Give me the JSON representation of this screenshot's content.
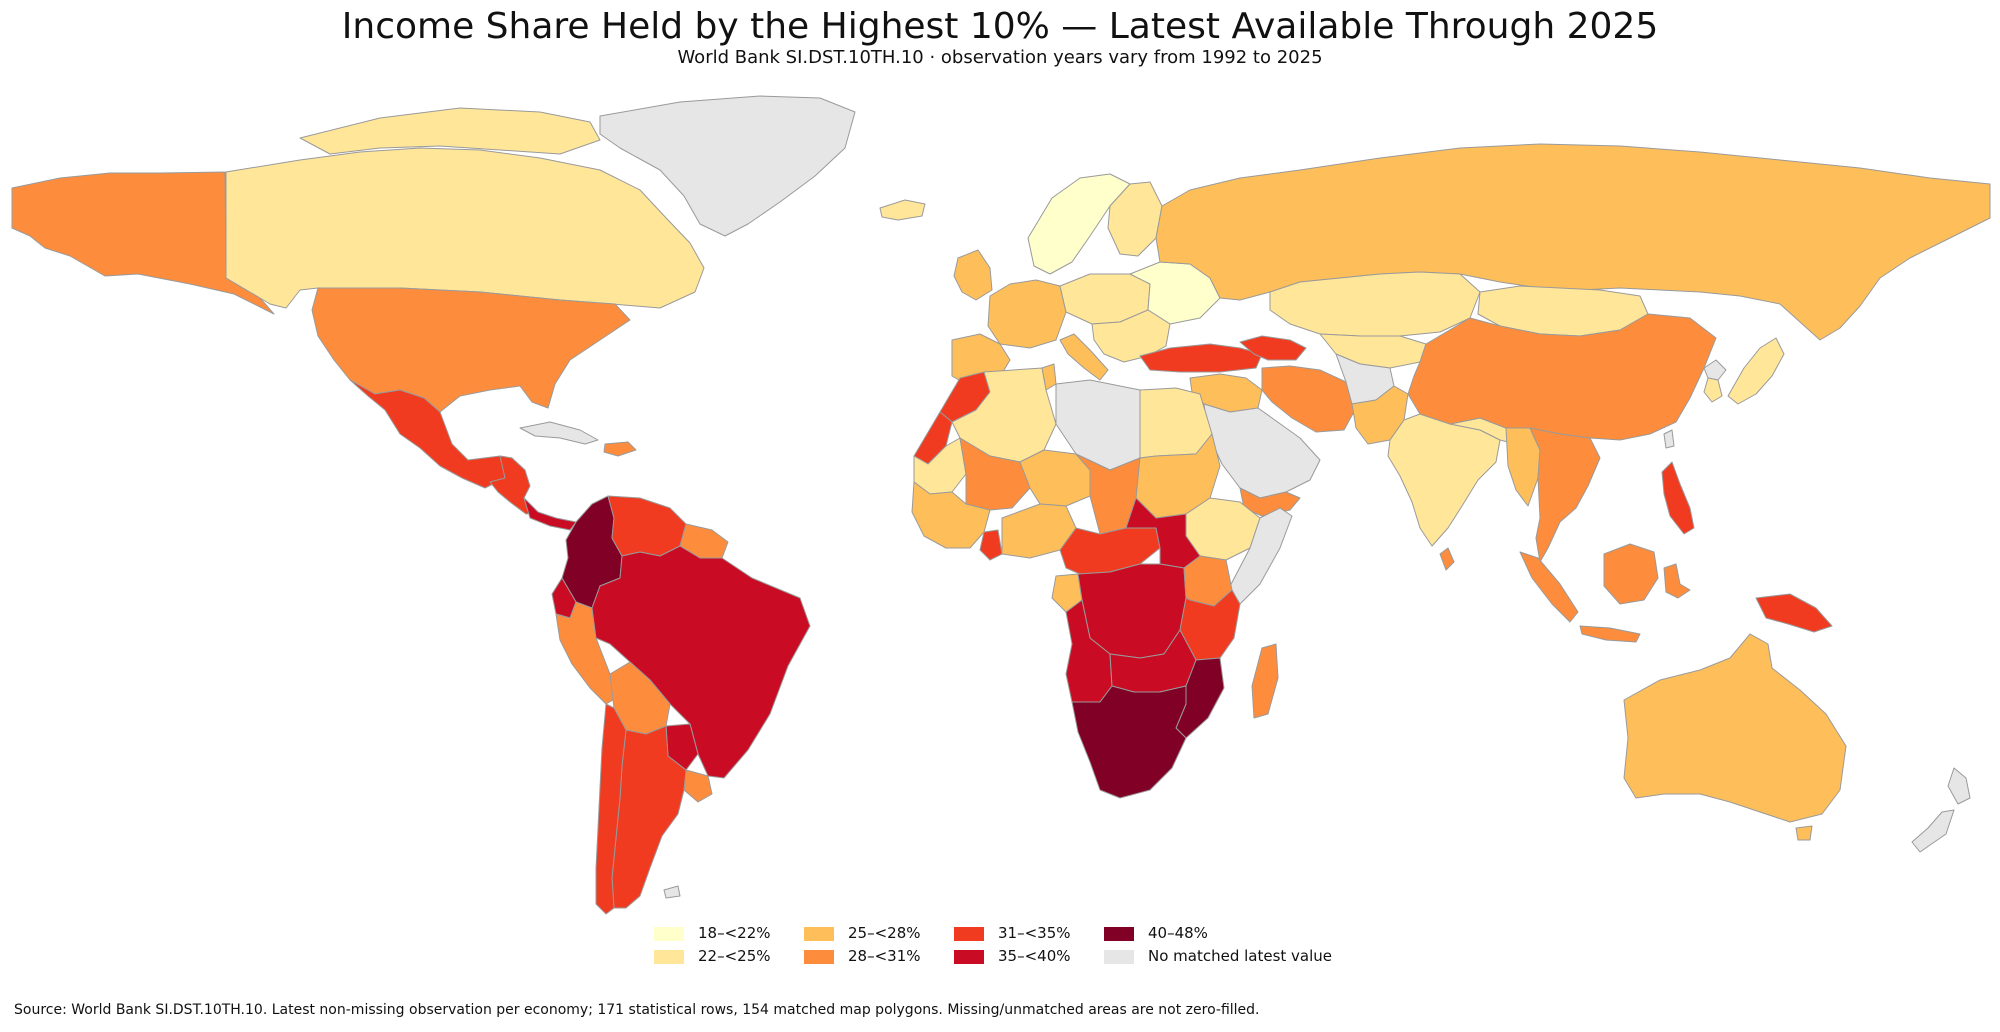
{
  "title": "Income Share Held by the Highest 10% — Latest Available Through 2025",
  "subtitle": "World Bank SI.DST.10TH.10 · observation years vary from 1992 to 2025",
  "legend": [
    {
      "label": "18–<22%",
      "color": "#ffffcc"
    },
    {
      "label": "22–<25%",
      "color": "#ffe699"
    },
    {
      "label": "25–<28%",
      "color": "#febf5a"
    },
    {
      "label": "28–<31%",
      "color": "#fd8d3c"
    },
    {
      "label": "31–<35%",
      "color": "#f03b20"
    },
    {
      "label": "35–<40%",
      "color": "#c90c24"
    },
    {
      "label": "40–48%",
      "color": "#800026"
    },
    {
      "label": "No matched latest value",
      "color": "#e6e6e6"
    }
  ],
  "source": "Source: World Bank SI.DST.10TH.10. Latest non-missing observation per economy; 171 statistical rows, 154 matched map polygons. Missing/unmatched areas are not zero-filled.",
  "map_regions": [
    {
      "name": "alaska",
      "bin": "28–<31%"
    },
    {
      "name": "canada",
      "bin": "22–<25%"
    },
    {
      "name": "greenland",
      "bin": "No matched latest value"
    },
    {
      "name": "iceland",
      "bin": "22–<25%"
    },
    {
      "name": "united-states",
      "bin": "28–<31%"
    },
    {
      "name": "mexico",
      "bin": "31–<35%"
    },
    {
      "name": "central-america",
      "bin": "31–<35%"
    },
    {
      "name": "panama",
      "bin": "35–<40%"
    },
    {
      "name": "cuba",
      "bin": "No matched latest value"
    },
    {
      "name": "caribbean",
      "bin": "28–<31%"
    },
    {
      "name": "colombia",
      "bin": "40–48%"
    },
    {
      "name": "venezuela",
      "bin": "31–<35%"
    },
    {
      "name": "guianas",
      "bin": "28–<31%"
    },
    {
      "name": "ecuador",
      "bin": "35–<40%"
    },
    {
      "name": "peru",
      "bin": "28–<31%"
    },
    {
      "name": "brazil",
      "bin": "35–<40%"
    },
    {
      "name": "bolivia",
      "bin": "28–<31%"
    },
    {
      "name": "paraguay",
      "bin": "35–<40%"
    },
    {
      "name": "chile",
      "bin": "31–<35%"
    },
    {
      "name": "argentina",
      "bin": "31–<35%"
    },
    {
      "name": "uruguay",
      "bin": "28–<31%"
    },
    {
      "name": "falklands",
      "bin": "No matched latest value"
    },
    {
      "name": "ireland-uk",
      "bin": "25–<28%"
    },
    {
      "name": "scandinavia",
      "bin": "18–<22%"
    },
    {
      "name": "finland",
      "bin": "22–<25%"
    },
    {
      "name": "western-europe",
      "bin": "25–<28%"
    },
    {
      "name": "iberia",
      "bin": "25–<28%"
    },
    {
      "name": "italy",
      "bin": "25–<28%"
    },
    {
      "name": "central-europe",
      "bin": "22–<25%"
    },
    {
      "name": "eastern-europe",
      "bin": "18–<22%"
    },
    {
      "name": "balkans",
      "bin": "22–<25%"
    },
    {
      "name": "russia",
      "bin": "25–<28%"
    },
    {
      "name": "turkey",
      "bin": "31–<35%"
    },
    {
      "name": "caucasus",
      "bin": "31–<35%"
    },
    {
      "name": "kazakhstan",
      "bin": "22–<25%"
    },
    {
      "name": "central-asia",
      "bin": "22–<25%"
    },
    {
      "name": "afghanistan",
      "bin": "No matched latest value"
    },
    {
      "name": "iran",
      "bin": "28–<31%"
    },
    {
      "name": "iraq-levant",
      "bin": "25–<28%"
    },
    {
      "name": "arabian-peninsula",
      "bin": "No matched latest value"
    },
    {
      "name": "yemen",
      "bin": "28–<31%"
    },
    {
      "name": "pakistan",
      "bin": "25–<28%"
    },
    {
      "name": "india",
      "bin": "22–<25%"
    },
    {
      "name": "sri-lanka",
      "bin": "28–<31%"
    },
    {
      "name": "nepal-bangladesh",
      "bin": "22–<25%"
    },
    {
      "name": "myanmar",
      "bin": "25–<28%"
    },
    {
      "name": "mainland-southeast-asia",
      "bin": "28–<31%"
    },
    {
      "name": "china",
      "bin": "28–<31%"
    },
    {
      "name": "mongolia",
      "bin": "22–<25%"
    },
    {
      "name": "korea",
      "bin": "22–<25%"
    },
    {
      "name": "north-korea",
      "bin": "No matched latest value"
    },
    {
      "name": "japan",
      "bin": "22–<25%"
    },
    {
      "name": "taiwan",
      "bin": "No matched latest value"
    },
    {
      "name": "philippines",
      "bin": "31–<35%"
    },
    {
      "name": "sumatra",
      "bin": "28–<31%"
    },
    {
      "name": "java",
      "bin": "28–<31%"
    },
    {
      "name": "borneo",
      "bin": "28–<31%"
    },
    {
      "name": "sulawesi",
      "bin": "28–<31%"
    },
    {
      "name": "papua-new-guinea",
      "bin": "31–<35%"
    },
    {
      "name": "australia",
      "bin": "25–<28%"
    },
    {
      "name": "tasmania",
      "bin": "25–<28%"
    },
    {
      "name": "new-zealand",
      "bin": "No matched latest value"
    },
    {
      "name": "morocco",
      "bin": "31–<35%"
    },
    {
      "name": "western-sahara",
      "bin": "31–<35%"
    },
    {
      "name": "algeria",
      "bin": "22–<25%"
    },
    {
      "name": "tunisia",
      "bin": "25–<28%"
    },
    {
      "name": "libya",
      "bin": "No matched latest value"
    },
    {
      "name": "egypt",
      "bin": "22–<25%"
    },
    {
      "name": "mauritania",
      "bin": "22–<25%"
    },
    {
      "name": "mali",
      "bin": "28–<31%"
    },
    {
      "name": "niger",
      "bin": "25–<28%"
    },
    {
      "name": "chad",
      "bin": "28–<31%"
    },
    {
      "name": "sudan",
      "bin": "25–<28%"
    },
    {
      "name": "west-africa-coast",
      "bin": "25–<28%"
    },
    {
      "name": "ghana",
      "bin": "31–<35%"
    },
    {
      "name": "nigeria",
      "bin": "25–<28%"
    },
    {
      "name": "ethiopia",
      "bin": "22–<25%"
    },
    {
      "name": "somalia",
      "bin": "No matched latest value"
    },
    {
      "name": "cameroon-car",
      "bin": "31–<35%"
    },
    {
      "name": "south-sudan",
      "bin": "35–<40%"
    },
    {
      "name": "gabon",
      "bin": "25–<28%"
    },
    {
      "name": "congo-basin",
      "bin": "35–<40%"
    },
    {
      "name": "east-africa",
      "bin": "28–<31%"
    },
    {
      "name": "tanzania",
      "bin": "31–<35%"
    },
    {
      "name": "angola",
      "bin": "35–<40%"
    },
    {
      "name": "zambia",
      "bin": "35–<40%"
    },
    {
      "name": "mozambique",
      "bin": "40–48%"
    },
    {
      "name": "southern-africa",
      "bin": "40–48%"
    },
    {
      "name": "madagascar",
      "bin": "28–<31%"
    }
  ]
}
